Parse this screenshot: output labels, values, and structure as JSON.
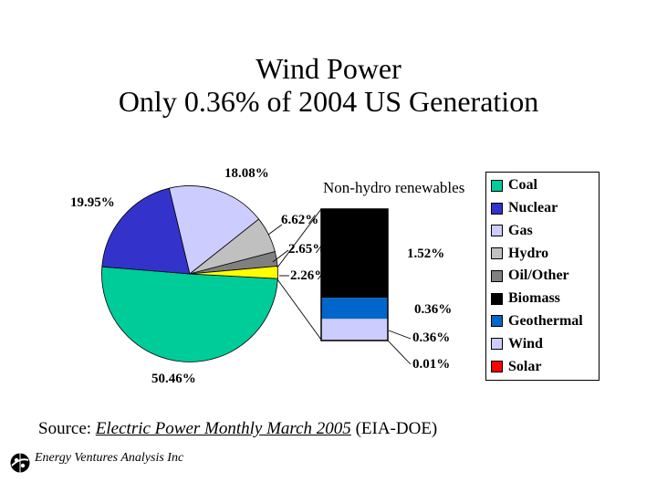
{
  "title": {
    "line1": "Wind Power",
    "line2": "Only 0.36% of 2004 US Generation"
  },
  "chart_data": {
    "type": "pie",
    "subtype": "bar-of-pie",
    "title": "Wind Power — Only 0.36% of 2004 US Generation",
    "pie": {
      "start_angle_deg": 93,
      "slices": [
        {
          "name": "Coal",
          "value": 50.46,
          "label": "50.46%",
          "color": "#00CC99"
        },
        {
          "name": "Nuclear",
          "value": 19.95,
          "label": "19.95%",
          "color": "#3333CC"
        },
        {
          "name": "Gas",
          "value": 18.08,
          "label": "18.08%",
          "color": "#CCCCFF"
        },
        {
          "name": "Hydro",
          "value": 6.62,
          "label": "6.62%",
          "color": "#C0C0C0"
        },
        {
          "name": "Oil/Other",
          "value": 2.65,
          "label": "2.65%",
          "color": "#808080"
        },
        {
          "name": "Non-hydro renewables",
          "value": 2.26,
          "label": "2.26%",
          "color": "#FFFF00"
        }
      ]
    },
    "bar": {
      "title": "Non-hydro renewables",
      "segments": [
        {
          "name": "Biomass",
          "value": 1.52,
          "label": "1.52%",
          "color": "#000000"
        },
        {
          "name": "Geothermal",
          "value": 0.36,
          "label": "0.36%",
          "color": "#0066CC"
        },
        {
          "name": "Wind",
          "value": 0.36,
          "label": "0.36%",
          "color": "#CCCCFF"
        },
        {
          "name": "Solar",
          "value": 0.01,
          "label": "0.01%",
          "color": "#FF0000"
        }
      ]
    },
    "legend": {
      "position": "right",
      "items": [
        {
          "label": "Coal",
          "color": "#00CC99"
        },
        {
          "label": "Nuclear",
          "color": "#3333CC"
        },
        {
          "label": "Gas",
          "color": "#CCCCFF"
        },
        {
          "label": "Hydro",
          "color": "#C0C0C0"
        },
        {
          "label": "Oil/Other",
          "color": "#808080"
        },
        {
          "label": "Biomass",
          "color": "#000000"
        },
        {
          "label": "Geothermal",
          "color": "#0066CC"
        },
        {
          "label": "Wind",
          "color": "#CCCCFF"
        },
        {
          "label": "Solar",
          "color": "#FF0000"
        }
      ]
    }
  },
  "source": {
    "prefix": "Source: ",
    "publication": "Electric Power Monthly March 2005",
    "suffix": " (EIA-DOE)"
  },
  "footer": {
    "company": "Energy Ventures Analysis Inc"
  }
}
